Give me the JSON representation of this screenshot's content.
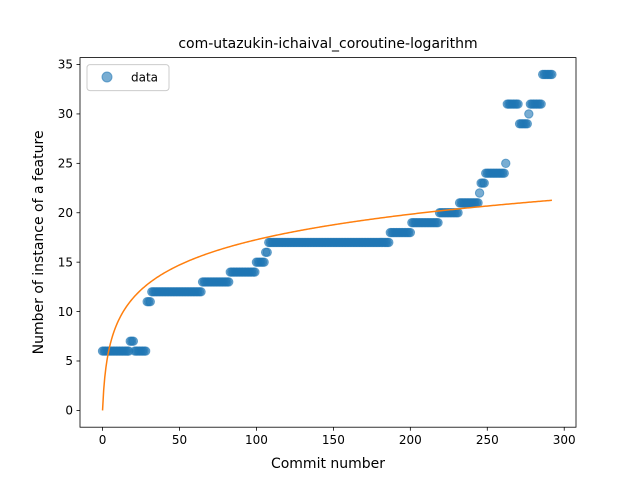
{
  "chart_data": {
    "type": "scatter",
    "title": "com-utazukin-ichaival_coroutine-logarithm",
    "xlabel": "Commit number",
    "ylabel": "Number of instance of a feature",
    "xlim": [
      -14.65,
      307.65
    ],
    "ylim": [
      -1.7,
      35.7
    ],
    "xticks": [
      0,
      50,
      100,
      150,
      200,
      250,
      300
    ],
    "yticks": [
      0,
      5,
      10,
      15,
      20,
      25,
      30,
      35
    ],
    "grid": false,
    "legend": {
      "position": "top-left",
      "entries": [
        "data"
      ]
    },
    "colors": {
      "data": "#1f77b4",
      "fit": "#ff7f0e"
    },
    "series": [
      {
        "name": "data",
        "kind": "scatter",
        "runs": [
          {
            "x0": 0,
            "x1": 17,
            "y": 6
          },
          {
            "x0": 18,
            "x1": 20,
            "y": 7
          },
          {
            "x0": 21,
            "x1": 28,
            "y": 6
          },
          {
            "x0": 29,
            "x1": 31,
            "y": 11
          },
          {
            "x0": 32,
            "x1": 64,
            "y": 12
          },
          {
            "x0": 65,
            "x1": 82,
            "y": 13
          },
          {
            "x0": 83,
            "x1": 99,
            "y": 14
          },
          {
            "x0": 100,
            "x1": 105,
            "y": 15
          },
          {
            "x0": 106,
            "x1": 107,
            "y": 16
          },
          {
            "x0": 108,
            "x1": 186,
            "y": 17
          },
          {
            "x0": 187,
            "x1": 200,
            "y": 18
          },
          {
            "x0": 201,
            "x1": 218,
            "y": 19
          },
          {
            "x0": 219,
            "x1": 231,
            "y": 20
          },
          {
            "x0": 232,
            "x1": 244,
            "y": 21
          },
          {
            "x0": 245,
            "x1": 245,
            "y": 22
          },
          {
            "x0": 246,
            "x1": 248,
            "y": 23
          },
          {
            "x0": 249,
            "x1": 261,
            "y": 24
          },
          {
            "x0": 262,
            "x1": 262,
            "y": 25
          },
          {
            "x0": 263,
            "x1": 270,
            "y": 31
          },
          {
            "x0": 271,
            "x1": 276,
            "y": 29
          },
          {
            "x0": 277,
            "x1": 277,
            "y": 30
          },
          {
            "x0": 278,
            "x1": 285,
            "y": 31
          },
          {
            "x0": 286,
            "x1": 292,
            "y": 34
          }
        ]
      },
      {
        "name": "",
        "kind": "line",
        "model": "logarithmic",
        "a": 3.743,
        "x_range": [
          0,
          292
        ]
      }
    ]
  }
}
